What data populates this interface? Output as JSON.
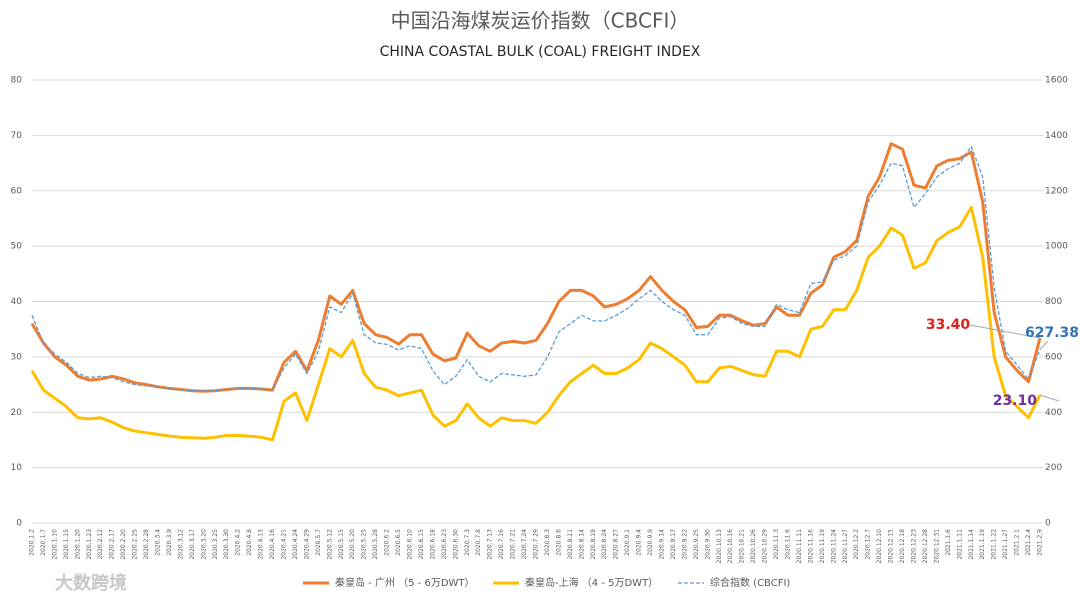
{
  "chart_data": {
    "type": "line",
    "title": "中国沿海煤炭运价指数（CBCFI）",
    "subtitle": "CHINA COASTAL BULK (COAL) FREIGHT INDEX",
    "watermark": "大数跨境",
    "categories": [
      "2020.1.2",
      "2020.1.7",
      "2020.1.10",
      "2020.1.15",
      "2020.1.20",
      "2020.1.23",
      "2020.2.12",
      "2020.2.17",
      "2020.2.20",
      "2020.2.25",
      "2020.2.28",
      "2020.3.4",
      "2020.3.9",
      "2020.3.12",
      "2020.3.17",
      "2020.3.20",
      "2020.3.25",
      "2020.3.30",
      "2020.4.2",
      "2020.4.8",
      "2020.4.13",
      "2020.4.16",
      "2020.4.21",
      "2020.4.24",
      "2020.4.29",
      "2020.5.7",
      "2020.5.12",
      "2020.5.15",
      "2020.5.20",
      "2020.5.25",
      "2020.5.28",
      "2020.6.2",
      "2020.6.5",
      "2020.6.10",
      "2020.6.15",
      "2020.6.18",
      "2020.6.23",
      "2020.6.30",
      "2020.7.3",
      "2020.7.8",
      "2020.7.13",
      "2020.7.16",
      "2020.7.21",
      "2020.7.24",
      "2020.7.29",
      "2020.8.3",
      "2020.8.6",
      "2020.8.11",
      "2020.8.14",
      "2020.8.19",
      "2020.8.24",
      "2020.8.27",
      "2020.9.1",
      "2020.9.4",
      "2020.9.9",
      "2020.9.14",
      "2020.9.17",
      "2020.9.22",
      "2020.9.25",
      "2020.9.30",
      "2020.10.13",
      "2020.10.16",
      "2020.10.21",
      "2020.10.26",
      "2020.10.29",
      "2020.11.3",
      "2020.11.6",
      "2020.11.11",
      "2020.11.16",
      "2020.11.19",
      "2020.11.24",
      "2020.11.27",
      "2020.12.2",
      "2020.12.7",
      "2020.12.10",
      "2020.12.15",
      "2020.12.18",
      "2020.12.23",
      "2020.12.28",
      "2020.12.31",
      "2021.1.6",
      "2021.1.11",
      "2021.1.14",
      "2021.1.19",
      "2021.1.22",
      "2021.1.27",
      "2021.2.1",
      "2021.2.4",
      "2021.2.9"
    ],
    "series": [
      {
        "name": "秦皇岛 - 广州 （5 - 6万DWT）",
        "color": "#ed7d31",
        "label_color": "#e0201b",
        "width": 3,
        "values": [
          36.0,
          32.5,
          30.0,
          28.5,
          26.5,
          25.8,
          26.0,
          26.5,
          26.0,
          25.3,
          25.0,
          24.6,
          24.3,
          24.1,
          23.9,
          23.8,
          23.9,
          24.1,
          24.3,
          24.3,
          24.2,
          24.0,
          29.0,
          31.0,
          27.5,
          33.0,
          41.0,
          39.5,
          42.0,
          36.0,
          34.0,
          33.5,
          32.3,
          34.0,
          34.0,
          30.5,
          29.3,
          29.8,
          34.3,
          32.0,
          31.0,
          32.5,
          32.8,
          32.5,
          33.0,
          36.0,
          40.0,
          42.0,
          42.0,
          41.0,
          39.0,
          39.5,
          40.5,
          42.0,
          44.5,
          42.0,
          40.0,
          38.5,
          35.3,
          35.5,
          37.5,
          37.5,
          36.5,
          35.7,
          36.0,
          39.0,
          37.5,
          37.5,
          41.5,
          43.0,
          48.0,
          49.0,
          51.0,
          59.0,
          62.5,
          68.5,
          67.5,
          61.0,
          60.5,
          64.5,
          65.5,
          65.8,
          67.0,
          58.0,
          38.0,
          30.0,
          27.5,
          25.5,
          33.4
        ],
        "value_labels": [
          null,
          null,
          null,
          null,
          null,
          null,
          null,
          null,
          null,
          null,
          null,
          null,
          null,
          null,
          null,
          null,
          null,
          null,
          null,
          null,
          null,
          null,
          null,
          null,
          null,
          null,
          null,
          null,
          null,
          null,
          null,
          null,
          null,
          null,
          null,
          null,
          null,
          null,
          null,
          null,
          null,
          null,
          null,
          null,
          null,
          null,
          null,
          null,
          null,
          null,
          null,
          null,
          null,
          null,
          null,
          null,
          null,
          null,
          null,
          null,
          null,
          null,
          null,
          null,
          null,
          null,
          null,
          null,
          null,
          null,
          null,
          null,
          null,
          null,
          null,
          null,
          null,
          null,
          null,
          null,
          null,
          null,
          null,
          null,
          null,
          null,
          null,
          null,
          "33.40"
        ]
      },
      {
        "name": "秦皇岛-上海 （4 - 5万DWT）",
        "color": "#ffc000",
        "label_color": "#7030a0",
        "width": 3,
        "values": [
          27.5,
          24,
          22.5,
          21,
          19,
          18.8,
          19,
          18.2,
          17.2,
          16.6,
          16.3,
          16,
          15.7,
          15.5,
          15.4,
          15.3,
          15.5,
          15.8,
          15.8,
          15.7,
          15.5,
          15.0,
          22,
          23.5,
          18.5,
          25,
          31.5,
          30,
          33,
          27,
          24.5,
          24,
          23,
          23.5,
          24,
          19.5,
          17.5,
          18.5,
          21.5,
          19,
          17.5,
          19,
          18.5,
          18.5,
          18,
          20,
          23,
          25.5,
          27,
          28.5,
          27,
          27,
          28,
          29.5,
          32.5,
          31.5,
          30,
          28.5,
          25.5,
          25.5,
          28,
          28.3,
          27.5,
          26.8,
          26.5,
          31,
          31,
          30,
          35,
          35.5,
          38.5,
          38.5,
          42,
          48,
          50,
          53.3,
          52,
          46,
          47,
          51,
          52.5,
          53.5,
          57,
          48,
          30,
          23,
          21,
          19,
          23.1
        ],
        "value_labels": [
          null,
          null,
          null,
          null,
          null,
          null,
          null,
          null,
          null,
          null,
          null,
          null,
          null,
          null,
          null,
          null,
          null,
          null,
          null,
          null,
          null,
          null,
          null,
          null,
          null,
          null,
          null,
          null,
          null,
          null,
          null,
          null,
          null,
          null,
          null,
          null,
          null,
          null,
          null,
          null,
          null,
          null,
          null,
          null,
          null,
          null,
          null,
          null,
          null,
          null,
          null,
          null,
          null,
          null,
          null,
          null,
          null,
          null,
          null,
          null,
          null,
          null,
          null,
          null,
          null,
          null,
          null,
          null,
          null,
          null,
          null,
          null,
          null,
          null,
          null,
          null,
          null,
          null,
          null,
          null,
          null,
          null,
          null,
          null,
          null,
          null,
          null,
          null,
          "23.10"
        ]
      },
      {
        "name": "综合指数 (CBCFI)",
        "color": "#5b9bd5",
        "label_color": "#2e75b6",
        "width": 1.3,
        "dash": true,
        "axis": "y2",
        "values": [
          750,
          650,
          610,
          580,
          540,
          525,
          530,
          525,
          510,
          500,
          495,
          490,
          485,
          480,
          478,
          477,
          478,
          482,
          485,
          487,
          485,
          480,
          560,
          610,
          540,
          620,
          780,
          760,
          830,
          680,
          650,
          645,
          625,
          640,
          630,
          550,
          500,
          530,
          590,
          530,
          510,
          540,
          535,
          530,
          535,
          600,
          690,
          720,
          750,
          730,
          730,
          750,
          775,
          810,
          840,
          800,
          770,
          750,
          680,
          680,
          740,
          745,
          720,
          710,
          710,
          790,
          770,
          760,
          865,
          870,
          950,
          965,
          1000,
          1160,
          1220,
          1300,
          1290,
          1140,
          1190,
          1250,
          1280,
          1300,
          1360,
          1250,
          850,
          620,
          570,
          520,
          627.38
        ],
        "value_labels": [
          null,
          null,
          null,
          null,
          null,
          null,
          null,
          null,
          null,
          null,
          null,
          null,
          null,
          null,
          null,
          null,
          null,
          null,
          null,
          null,
          null,
          null,
          null,
          null,
          null,
          null,
          null,
          null,
          null,
          null,
          null,
          null,
          null,
          null,
          null,
          null,
          null,
          null,
          null,
          null,
          null,
          null,
          null,
          null,
          null,
          null,
          null,
          null,
          null,
          null,
          null,
          null,
          null,
          null,
          null,
          null,
          null,
          null,
          null,
          null,
          null,
          null,
          null,
          null,
          null,
          null,
          null,
          null,
          null,
          null,
          null,
          null,
          null,
          null,
          null,
          null,
          null,
          null,
          null,
          null,
          null,
          null,
          null,
          null,
          null,
          null,
          null,
          null,
          "627.38"
        ]
      }
    ],
    "ylim": [
      0,
      80
    ],
    "yticks": [
      0,
      10,
      20,
      30,
      40,
      50,
      60,
      70,
      80
    ],
    "y2lim": [
      0,
      1600
    ],
    "y2ticks": [
      0,
      200,
      400,
      600,
      800,
      1000,
      1200,
      1400,
      1600
    ],
    "grid": true,
    "legend": "bottom"
  }
}
